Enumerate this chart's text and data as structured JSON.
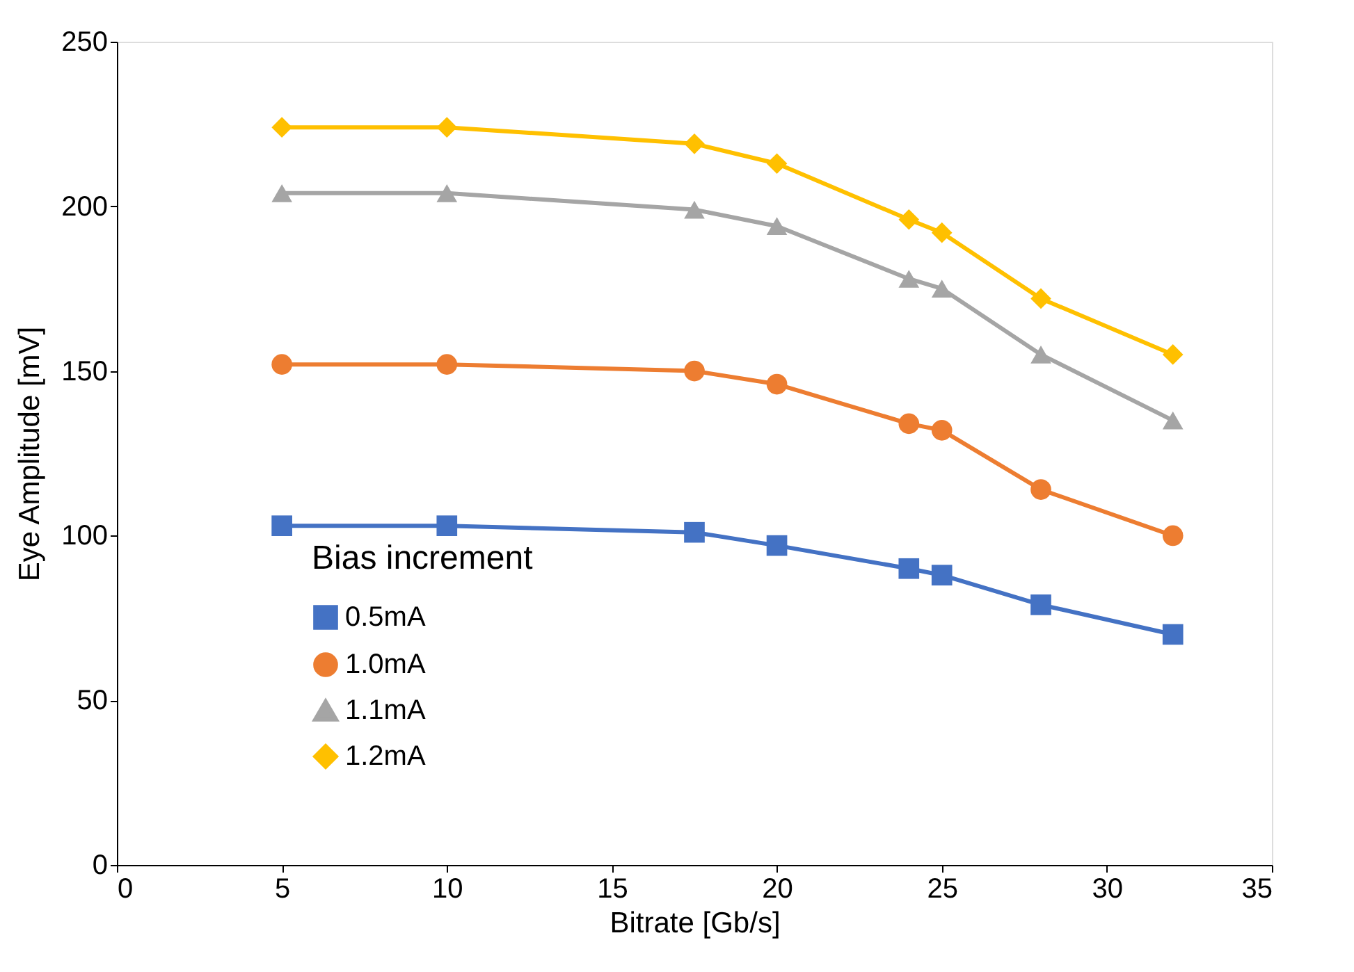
{
  "chart_data": {
    "type": "line",
    "xlabel": "Bitrate [Gb/s]",
    "ylabel": "Eye Amplitude [mV]",
    "legend_title": "Bias increment",
    "legend": "bottom left",
    "grid": false,
    "x": [
      5,
      10,
      17.5,
      20,
      24,
      25,
      28,
      32
    ],
    "xlim": [
      0,
      35
    ],
    "xticks": [
      0,
      5,
      10,
      15,
      20,
      25,
      30,
      35
    ],
    "ylim": [
      0,
      250
    ],
    "yticks": [
      0,
      50,
      100,
      150,
      200,
      250
    ],
    "series": [
      {
        "name": "0.5mA",
        "color": "#4472c4",
        "marker": "square",
        "values": [
          103,
          103,
          101,
          97,
          90,
          88,
          79,
          70
        ]
      },
      {
        "name": "1.0mA",
        "color": "#ed7d31",
        "marker": "circle",
        "values": [
          152,
          152,
          150,
          146,
          134,
          132,
          114,
          100
        ]
      },
      {
        "name": "1.1mA",
        "color": "#a5a5a5",
        "marker": "triangle",
        "values": [
          204,
          204,
          199,
          194,
          178,
          175,
          155,
          135
        ]
      },
      {
        "name": "1.2mA",
        "color": "#ffc000",
        "marker": "diamond",
        "values": [
          224,
          224,
          219,
          213,
          196,
          192,
          172,
          155
        ]
      }
    ]
  }
}
